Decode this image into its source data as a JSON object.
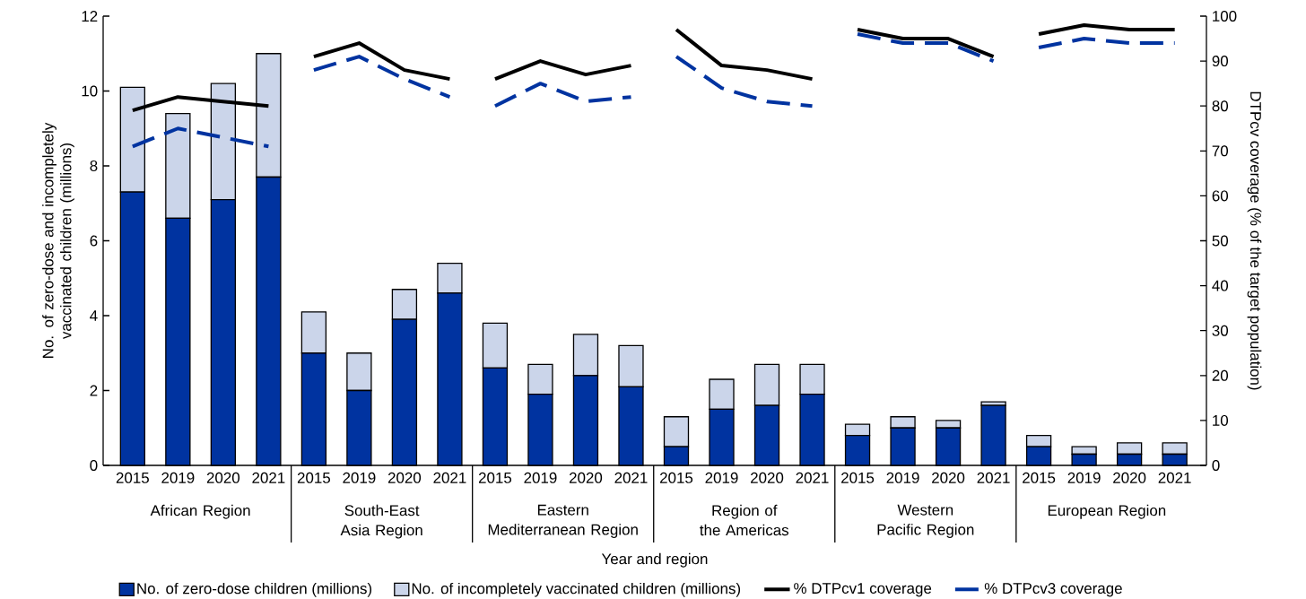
{
  "chart_data": {
    "type": "bar",
    "stacked": true,
    "xlabel": "Year and region",
    "ylabel": "No. of zero-dose and incompletely vaccinated children (millions)",
    "y2label": "DTPcv coverage (% of the target population)",
    "categories": [
      "2015",
      "2019",
      "2020",
      "2021",
      "2015",
      "2019",
      "2020",
      "2021",
      "2015",
      "2019",
      "2020",
      "2021",
      "2015",
      "2019",
      "2020",
      "2021",
      "2015",
      "2019",
      "2020",
      "2021",
      "2015",
      "2019",
      "2020",
      "2021"
    ],
    "annotations": [
      "African Region",
      "South-East Asia Region",
      "Eastern Mediterranean Region",
      "Region of the Americas",
      "Western Pacific Region",
      "European Region"
    ],
    "ylim": [
      0,
      12
    ],
    "yticks": [
      0,
      2,
      4,
      6,
      8,
      10,
      12
    ],
    "y2lim": [
      0,
      100
    ],
    "y2ticks": [
      0,
      10,
      20,
      30,
      40,
      50,
      60,
      70,
      80,
      90,
      100
    ],
    "legend": "bottom",
    "series": [
      {
        "name": "No. of zero-dose children (millions)",
        "color": "#0033a0",
        "values": [
          7.3,
          6.6,
          7.1,
          7.7,
          3.0,
          2.0,
          3.9,
          4.6,
          2.6,
          1.9,
          2.4,
          2.1,
          0.5,
          1.5,
          1.6,
          1.9,
          0.8,
          1.0,
          1.0,
          1.6,
          0.5,
          0.3,
          0.3,
          0.3
        ]
      },
      {
        "name": "No. of incompletely vaccinated children (millions)",
        "color": "#cbd5ea",
        "values": [
          2.8,
          2.8,
          3.1,
          3.3,
          1.1,
          1.0,
          0.8,
          0.8,
          1.2,
          0.8,
          1.1,
          1.1,
          0.8,
          0.8,
          1.1,
          0.8,
          0.3,
          0.3,
          0.2,
          0.1,
          0.3,
          0.2,
          0.3,
          0.3
        ]
      },
      {
        "name": "% DTPcv1 coverage",
        "type": "line",
        "axis": "y2",
        "color": "#000000",
        "line_style": "solid",
        "values": [
          79,
          82,
          81,
          80,
          null,
          null,
          null,
          null,
          null,
          null,
          null,
          null,
          null,
          null,
          null,
          null,
          null,
          null,
          null,
          null,
          null,
          null,
          null,
          null
        ]
      },
      {
        "type": "line",
        "axis": "y2",
        "color": "#000000",
        "line_style": "solid",
        "values": [
          null,
          null,
          null,
          null,
          91,
          94,
          88,
          86,
          null,
          null,
          null,
          null,
          null,
          null,
          null,
          null,
          null,
          null,
          null,
          null,
          null,
          null,
          null,
          null
        ]
      },
      {
        "type": "line",
        "axis": "y2",
        "color": "#000000",
        "line_style": "solid",
        "values": [
          null,
          null,
          null,
          null,
          null,
          null,
          null,
          null,
          86,
          90,
          87,
          89,
          null,
          null,
          null,
          null,
          null,
          null,
          null,
          null,
          null,
          null,
          null,
          null
        ]
      },
      {
        "type": "line",
        "axis": "y2",
        "color": "#000000",
        "line_style": "solid",
        "values": [
          null,
          null,
          null,
          null,
          null,
          null,
          null,
          null,
          null,
          null,
          null,
          null,
          97,
          89,
          88,
          86,
          null,
          null,
          null,
          null,
          null,
          null,
          null,
          null
        ]
      },
      {
        "type": "line",
        "axis": "y2",
        "color": "#000000",
        "line_style": "solid",
        "values": [
          null,
          null,
          null,
          null,
          null,
          null,
          null,
          null,
          null,
          null,
          null,
          null,
          null,
          null,
          null,
          null,
          97,
          95,
          95,
          91,
          null,
          null,
          null,
          null
        ]
      },
      {
        "type": "line",
        "axis": "y2",
        "color": "#000000",
        "line_style": "solid",
        "values": [
          null,
          null,
          null,
          null,
          null,
          null,
          null,
          null,
          null,
          null,
          null,
          null,
          null,
          null,
          null,
          null,
          null,
          null,
          null,
          null,
          96,
          98,
          97,
          97
        ]
      },
      {
        "name": "% DTPcv3 coverage",
        "type": "line",
        "axis": "y2",
        "color": "#0033a0",
        "line_style": "dashed",
        "values": [
          71,
          75,
          73,
          71,
          null,
          null,
          null,
          null,
          null,
          null,
          null,
          null,
          null,
          null,
          null,
          null,
          null,
          null,
          null,
          null,
          null,
          null,
          null,
          null
        ]
      },
      {
        "type": "line",
        "axis": "y2",
        "color": "#0033a0",
        "line_style": "dashed",
        "values": [
          null,
          null,
          null,
          null,
          88,
          91,
          86,
          82,
          null,
          null,
          null,
          null,
          null,
          null,
          null,
          null,
          null,
          null,
          null,
          null,
          null,
          null,
          null,
          null
        ]
      },
      {
        "type": "line",
        "axis": "y2",
        "color": "#0033a0",
        "line_style": "dashed",
        "values": [
          null,
          null,
          null,
          null,
          null,
          null,
          null,
          null,
          80,
          85,
          81,
          82,
          null,
          null,
          null,
          null,
          null,
          null,
          null,
          null,
          null,
          null,
          null,
          null
        ]
      },
      {
        "type": "line",
        "axis": "y2",
        "color": "#0033a0",
        "line_style": "dashed",
        "values": [
          null,
          null,
          null,
          null,
          null,
          null,
          null,
          null,
          null,
          null,
          null,
          null,
          91,
          84,
          81,
          80,
          null,
          null,
          null,
          null,
          null,
          null,
          null,
          null
        ]
      },
      {
        "type": "line",
        "axis": "y2",
        "color": "#0033a0",
        "line_style": "dashed",
        "values": [
          null,
          null,
          null,
          null,
          null,
          null,
          null,
          null,
          null,
          null,
          null,
          null,
          null,
          null,
          null,
          null,
          96,
          94,
          94,
          90,
          null,
          null,
          null,
          null
        ]
      },
      {
        "type": "line",
        "axis": "y2",
        "color": "#0033a0",
        "line_style": "dashed",
        "values": [
          null,
          null,
          null,
          null,
          null,
          null,
          null,
          null,
          null,
          null,
          null,
          null,
          null,
          null,
          null,
          null,
          null,
          null,
          null,
          null,
          93,
          95,
          94,
          94
        ]
      }
    ]
  }
}
